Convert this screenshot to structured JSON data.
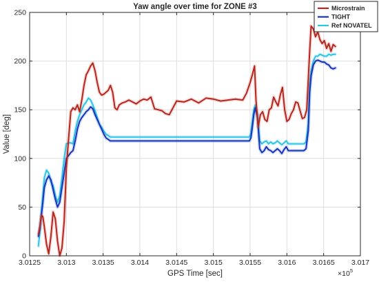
{
  "chart_data": {
    "type": "line",
    "title": "Yaw angle over time for ZONE #3",
    "xlabel": "GPS Time [sec]",
    "ylabel": "Value [deg]",
    "xlim": [
      3.0125,
      3.017
    ],
    "ylim": [
      0,
      250
    ],
    "x_scale_base": "10",
    "x_scale_exponent": "5",
    "xticks": [
      3.0125,
      3.013,
      3.0135,
      3.014,
      3.0145,
      3.015,
      3.0155,
      3.016,
      3.0165,
      3.017
    ],
    "xtick_labels": [
      "3.0125",
      "3.013",
      "3.0135",
      "3.014",
      "3.0145",
      "3.015",
      "3.0155",
      "3.016",
      "3.0165",
      "3.017"
    ],
    "yticks": [
      0,
      50,
      100,
      150,
      200,
      250
    ],
    "ytick_labels": [
      "0",
      "50",
      "100",
      "150",
      "200",
      "250"
    ],
    "grid": true,
    "legend_position": "top-right",
    "series": [
      {
        "name": "Microstrain",
        "color": "#b5261e",
        "x": [
          3.01262,
          3.01264,
          3.01266,
          3.01268,
          3.0127,
          3.01273,
          3.01276,
          3.01279,
          3.01282,
          3.01285,
          3.01288,
          3.01291,
          3.01294,
          3.01297,
          3.013,
          3.01303,
          3.01306,
          3.01309,
          3.01312,
          3.01315,
          3.01318,
          3.01321,
          3.01324,
          3.01327,
          3.0133,
          3.01333,
          3.01336,
          3.01339,
          3.01342,
          3.01345,
          3.01348,
          3.01351,
          3.01354,
          3.01357,
          3.0136,
          3.01363,
          3.01366,
          3.01369,
          3.01372,
          3.01376,
          3.0138,
          3.01385,
          3.0139,
          3.01395,
          3.014,
          3.01405,
          3.0141,
          3.01415,
          3.0142,
          3.01425,
          3.0143,
          3.01435,
          3.0144,
          3.0145,
          3.0146,
          3.0147,
          3.0148,
          3.0149,
          3.015,
          3.0151,
          3.0152,
          3.0153,
          3.0154,
          3.01545,
          3.0155,
          3.01553,
          3.01556,
          3.01558,
          3.01561,
          3.01564,
          3.01567,
          3.0157,
          3.01573,
          3.01576,
          3.01579,
          3.01582,
          3.01585,
          3.01588,
          3.01591,
          3.01594,
          3.01597,
          3.016,
          3.01603,
          3.01606,
          3.01609,
          3.01612,
          3.01615,
          3.01618,
          3.01621,
          3.01624,
          3.01627,
          3.01629,
          3.01631,
          3.01633,
          3.01636,
          3.01639,
          3.01642,
          3.01645,
          3.01648,
          3.01651,
          3.01654,
          3.01657,
          3.0166,
          3.01663,
          3.01666
        ],
        "values": [
          22,
          30,
          42,
          40,
          30,
          12,
          2,
          20,
          45,
          38,
          15,
          0,
          8,
          35,
          90,
          120,
          148,
          152,
          150,
          155,
          148,
          160,
          175,
          186,
          190,
          195,
          198,
          190,
          178,
          168,
          165,
          166,
          168,
          170,
          175,
          168,
          152,
          150,
          155,
          157,
          158,
          160,
          158,
          156,
          159,
          161,
          160,
          163,
          151,
          150,
          149,
          146,
          145,
          159,
          158,
          161,
          157,
          162,
          161,
          159,
          160,
          161,
          160,
          167,
          178,
          186,
          195,
          160,
          132,
          145,
          148,
          140,
          138,
          150,
          152,
          163,
          158,
          154,
          165,
          173,
          150,
          138,
          140,
          146,
          150,
          158,
          157,
          149,
          141,
          142,
          150,
          180,
          210,
          236,
          233,
          225,
          230,
          222,
          218,
          221,
          213,
          218,
          210,
          217,
          215
        ]
      },
      {
        "name": "TIGHT",
        "color": "#1535b8",
        "x": [
          3.01262,
          3.01264,
          3.01266,
          3.01268,
          3.0127,
          3.01273,
          3.01276,
          3.01279,
          3.01282,
          3.01285,
          3.01288,
          3.01291,
          3.01294,
          3.01297,
          3.013,
          3.01303,
          3.01306,
          3.01309,
          3.01312,
          3.01315,
          3.01318,
          3.01321,
          3.01324,
          3.01327,
          3.0133,
          3.01333,
          3.01336,
          3.01339,
          3.01342,
          3.01345,
          3.01348,
          3.01351,
          3.01354,
          3.0136,
          3.0137,
          3.0138,
          3.014,
          3.0142,
          3.0144,
          3.0146,
          3.0148,
          3.015,
          3.0152,
          3.0154,
          3.01549,
          3.01551,
          3.01553,
          3.01555,
          3.01557,
          3.0156,
          3.01563,
          3.01566,
          3.01569,
          3.01572,
          3.01575,
          3.01578,
          3.01581,
          3.01584,
          3.01587,
          3.0159,
          3.01593,
          3.01596,
          3.01599,
          3.01602,
          3.01605,
          3.01608,
          3.01611,
          3.01614,
          3.01617,
          3.0162,
          3.01623,
          3.01626,
          3.01629,
          3.01631,
          3.01633,
          3.01636,
          3.01639,
          3.01642,
          3.01645,
          3.01648,
          3.01651,
          3.01654,
          3.01657,
          3.0166,
          3.01663,
          3.01666
        ],
        "values": [
          20,
          28,
          42,
          55,
          70,
          78,
          82,
          78,
          68,
          58,
          50,
          55,
          70,
          85,
          100,
          103,
          106,
          108,
          118,
          130,
          138,
          142,
          145,
          148,
          150,
          153,
          151,
          145,
          140,
          135,
          130,
          125,
          121,
          118,
          118,
          118,
          118,
          118,
          118,
          118,
          118,
          118,
          118,
          118,
          118,
          121,
          132,
          145,
          152,
          142,
          110,
          106,
          108,
          112,
          109,
          108,
          106,
          108,
          110,
          108,
          105,
          109,
          112,
          108,
          108,
          108,
          108,
          108,
          108,
          108,
          108,
          110,
          128,
          168,
          185,
          196,
          200,
          201,
          200,
          199,
          199,
          197,
          196,
          193,
          192,
          193
        ]
      },
      {
        "name": "Ref NOVATEL",
        "color": "#2ec4e6",
        "x": [
          3.01262,
          3.01264,
          3.01266,
          3.01268,
          3.0127,
          3.01273,
          3.01276,
          3.01279,
          3.01282,
          3.01285,
          3.01288,
          3.01291,
          3.01294,
          3.01297,
          3.013,
          3.01303,
          3.01306,
          3.01309,
          3.01312,
          3.01315,
          3.01318,
          3.01321,
          3.01324,
          3.01327,
          3.0133,
          3.01333,
          3.01336,
          3.01339,
          3.01342,
          3.01345,
          3.01348,
          3.01351,
          3.01354,
          3.0136,
          3.0137,
          3.0138,
          3.014,
          3.0142,
          3.0144,
          3.0146,
          3.0148,
          3.015,
          3.0152,
          3.0154,
          3.01549,
          3.01551,
          3.01553,
          3.01555,
          3.01557,
          3.0156,
          3.01563,
          3.01566,
          3.01569,
          3.01572,
          3.01575,
          3.01578,
          3.01581,
          3.01584,
          3.01587,
          3.0159,
          3.01593,
          3.01596,
          3.01599,
          3.01602,
          3.01605,
          3.01608,
          3.01611,
          3.01614,
          3.01617,
          3.0162,
          3.01623,
          3.01626,
          3.01629,
          3.01631,
          3.01633,
          3.01636,
          3.01639,
          3.01642,
          3.01645,
          3.01648,
          3.01651,
          3.01654,
          3.01657,
          3.0166,
          3.01663,
          3.01666
        ],
        "values": [
          10,
          25,
          45,
          62,
          80,
          88,
          85,
          76,
          72,
          62,
          55,
          62,
          80,
          100,
          115,
          116,
          116,
          115,
          128,
          138,
          145,
          150,
          155,
          158,
          162,
          160,
          155,
          149,
          142,
          135,
          132,
          128,
          125,
          122,
          122,
          122,
          122,
          122,
          122,
          122,
          122,
          122,
          122,
          122,
          122,
          126,
          138,
          150,
          155,
          145,
          118,
          115,
          117,
          118,
          115,
          117,
          115,
          116,
          118,
          116,
          114,
          116,
          118,
          115,
          115,
          115,
          115,
          115,
          115,
          115,
          115,
          117,
          135,
          175,
          190,
          200,
          205,
          205,
          207,
          206,
          205,
          205,
          207,
          206,
          207,
          207
        ]
      }
    ]
  }
}
